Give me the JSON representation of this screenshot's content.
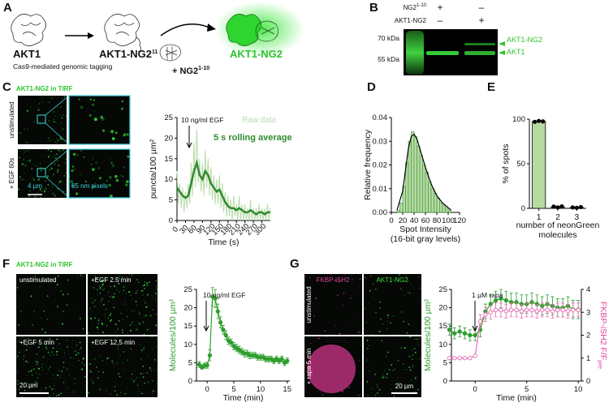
{
  "panels": {
    "A": {
      "label": "A",
      "akt1": "AKT1",
      "cas9": "Cas9-mediated genomic tagging",
      "tagged": "AKT1-NG2",
      "tagged_sup": "11",
      "ng2": "+ NG2",
      "ng2_sup": "1-10",
      "product": "AKT1-NG2"
    },
    "B": {
      "label": "B",
      "row1": "NG2",
      "row1_sup": "1-10",
      "row2": "AKT1-NG2",
      "signs": [
        [
          "+",
          "–"
        ],
        [
          "–",
          "+"
        ]
      ],
      "markers": [
        "70 kDa",
        "55 kDa"
      ],
      "bands": [
        "AKT1-NG2",
        "AKT1"
      ]
    },
    "C": {
      "label": "C",
      "title": "AKT1-NG2 in TIRF",
      "rows": [
        "unstimulated",
        "+ EGF 60s"
      ],
      "scale": "4 µm",
      "pixels": "85 nm pixels"
    },
    "D": {
      "label": "D"
    },
    "E": {
      "label": "E"
    },
    "F": {
      "label": "F",
      "title": "AKT1-NG2 in TIRF",
      "images": [
        "unstimulated",
        "+EGF 2.5 min",
        "+EGF 5 min",
        "+EGF 12.5 min"
      ],
      "scale": "20 µm"
    },
    "G": {
      "label": "G",
      "columns": [
        "FKBP-iSH2",
        "AKT1-NG2"
      ],
      "rows": [
        "unstimulated",
        "+ rapa 5 min"
      ],
      "scale": "20 µm"
    }
  },
  "chart_data": [
    {
      "type": "line",
      "ylabel": "puncta/100 µm²",
      "xlabel": "Time (s)",
      "annotation": "10 ng/ml EGF",
      "xlim": [
        0,
        330
      ],
      "xticks": [
        0,
        30,
        60,
        90,
        120,
        150,
        180,
        210,
        240,
        270,
        300
      ],
      "ylim": [
        0,
        25
      ],
      "yticks": [
        0,
        5,
        10,
        15,
        20,
        25
      ],
      "series": [
        {
          "name": "Raw data",
          "color": "#b9dcaa",
          "x": [
            0,
            5,
            10,
            15,
            20,
            25,
            30,
            35,
            40,
            45,
            50,
            55,
            60,
            65,
            70,
            75,
            80,
            85,
            90,
            95,
            100,
            105,
            110,
            115,
            120,
            125,
            130,
            135,
            140,
            145,
            150,
            155,
            160,
            165,
            170,
            175,
            180,
            185,
            190,
            195,
            200,
            205,
            210,
            215,
            220,
            225,
            230,
            235,
            240,
            245,
            250,
            255,
            260,
            265,
            270,
            275,
            280,
            285,
            290,
            295,
            300,
            305,
            310,
            315,
            320,
            325,
            330
          ],
          "values": [
            12,
            4,
            9,
            3,
            8,
            2,
            7,
            3,
            9,
            4,
            14,
            6,
            19,
            8,
            22,
            9,
            15,
            7,
            14,
            6,
            17,
            8,
            15,
            6,
            13,
            5,
            11,
            4,
            10,
            4,
            11,
            3,
            9,
            2,
            7,
            1,
            6,
            1,
            5,
            0,
            6,
            1,
            4,
            0,
            6,
            0,
            4,
            0,
            4,
            0,
            3,
            0,
            5,
            0,
            3,
            0,
            3,
            0,
            4,
            0,
            3,
            0,
            3,
            0,
            4,
            0,
            3
          ]
        },
        {
          "name": "5 s rolling average",
          "color": "#2e8b2e",
          "x": [
            0,
            10,
            20,
            30,
            40,
            50,
            60,
            70,
            80,
            90,
            100,
            110,
            120,
            130,
            140,
            150,
            160,
            170,
            180,
            190,
            200,
            210,
            220,
            230,
            240,
            250,
            260,
            270,
            280,
            290,
            300,
            310,
            320,
            330
          ],
          "values": [
            8,
            7,
            6,
            5.5,
            6,
            9,
            12,
            14,
            11,
            10,
            12,
            11,
            9,
            8,
            7,
            7.5,
            6,
            4.5,
            3.5,
            3,
            3,
            2.5,
            3,
            2.5,
            2,
            2,
            2.5,
            2,
            1.5,
            2,
            2,
            1.5,
            2,
            2
          ]
        }
      ]
    },
    {
      "type": "histogram",
      "ylabel": "Relative frequency",
      "xlabel": [
        "Spot Intensity",
        "(16-bit gray levels)"
      ],
      "color": "#b5dba2",
      "edge_color": "#3f8f3f",
      "xlim": [
        0,
        120
      ],
      "xticks": [
        0,
        20,
        40,
        60,
        80,
        100,
        120
      ],
      "ylim": [
        0,
        0.04
      ],
      "yticks": [
        {
          "value": 0,
          "label": "0.00"
        },
        {
          "value": 0.01,
          "label": "0.01"
        },
        {
          "value": 0.02,
          "label": "0.02"
        },
        {
          "value": 0.03,
          "label": "0.03"
        },
        {
          "value": 0.04,
          "label": "0.04"
        }
      ],
      "bins": [
        10,
        15,
        20,
        25,
        30,
        35,
        40,
        45,
        50,
        55,
        60,
        65,
        70,
        75,
        80,
        85,
        90,
        95,
        100,
        105
      ],
      "counts": [
        0.001,
        0.004,
        0.011,
        0.021,
        0.03,
        0.034,
        0.032,
        0.028,
        0.024,
        0.02,
        0.017,
        0.013,
        0.01,
        0.008,
        0.006,
        0.004,
        0.003,
        0.002,
        0.001
      ],
      "curve": {
        "color": "#000000",
        "x": [
          10,
          20,
          25,
          30,
          35,
          40,
          45,
          50,
          60,
          70,
          80,
          90,
          100,
          105
        ],
        "y": [
          0.001,
          0.009,
          0.018,
          0.027,
          0.032,
          0.033,
          0.031,
          0.027,
          0.019,
          0.012,
          0.007,
          0.004,
          0.002,
          0.001
        ]
      }
    },
    {
      "type": "bar",
      "ylabel": "% of spots",
      "xlabel": [
        "number of neonGreen",
        "molecules"
      ],
      "color": "#b5dba2",
      "point_color": "#000000",
      "categories": [
        "1",
        "2",
        "3"
      ],
      "values": [
        97.5,
        1.7,
        1
      ],
      "points": [
        [
          97,
          98,
          97.5
        ],
        [
          2,
          1,
          2.2
        ],
        [
          1,
          0.6,
          1.4
        ]
      ],
      "ylim": [
        0,
        100
      ],
      "yticks": [
        0,
        50,
        100
      ]
    },
    {
      "type": "errorline",
      "ylabel": "Molecules/100 µm²",
      "ylabel_color": "#2e9e2e",
      "xlabel": "Time (min)",
      "annotation": "10 ng/ml EGF",
      "xlim": [
        -2,
        15.5
      ],
      "xticks": [
        0,
        5,
        10,
        15
      ],
      "ylim": [
        0,
        25
      ],
      "yticks": [
        0,
        5,
        10,
        15,
        20,
        25
      ],
      "series": [
        {
          "color": "#2e9e2e",
          "marker": "filled",
          "x": [
            -1.5,
            -1,
            -0.5,
            0,
            0.5,
            1,
            1.5,
            2,
            2.5,
            3,
            3.5,
            4,
            4.5,
            5,
            5.5,
            6,
            6.5,
            7,
            7.5,
            8,
            8.5,
            9,
            9.5,
            10,
            10.5,
            11,
            11.5,
            12,
            12.5,
            13,
            13.5,
            14,
            14.5,
            15
          ],
          "values": [
            4.5,
            3.8,
            4.2,
            4.3,
            7,
            23,
            22.5,
            19,
            16,
            14,
            12.5,
            11,
            10.5,
            9.5,
            9,
            8.5,
            8,
            7.5,
            7.5,
            7,
            7,
            7,
            6.5,
            6.5,
            6.5,
            6,
            6,
            6,
            5.5,
            6,
            5.5,
            6,
            5,
            5.5
          ],
          "errors": [
            0.8,
            0.6,
            0.7,
            0.8,
            1.5,
            2.5,
            2.5,
            2,
            1.5,
            1.2,
            1.2,
            1,
            1,
            1,
            1,
            1,
            0.9,
            0.9,
            0.9,
            0.9,
            0.8,
            0.8,
            0.8,
            0.8,
            0.8,
            0.8,
            0.8,
            0.8,
            0.8,
            0.8,
            0.8,
            0.8,
            0.8,
            0.8
          ]
        }
      ]
    },
    {
      "type": "errorline",
      "ylabel": "Molecules/100 µm²",
      "ylabel_color": "#2e9e2e",
      "y2label": "FKBP-iSH2 F/F",
      "y2label_sub": "pre",
      "y2label_color": "#e0439a",
      "xlabel": "Time (min)",
      "annotation": "1 µM rapa",
      "xlim": [
        -2.3,
        10.3
      ],
      "xticks": [
        0,
        5,
        10
      ],
      "ylim": [
        0,
        25
      ],
      "yticks": [
        0,
        5,
        10,
        15,
        20,
        25
      ],
      "y2lim": [
        0,
        4
      ],
      "y2ticks": [
        0,
        1,
        2,
        3,
        4
      ],
      "series": [
        {
          "color": "#2e9e2e",
          "marker": "filled",
          "x": [
            -2.5,
            -2,
            -1.5,
            -1,
            -0.5,
            0,
            0.5,
            1,
            1.5,
            2,
            2.5,
            3,
            3.5,
            4,
            4.5,
            5,
            5.5,
            6,
            6.5,
            7,
            7.5,
            8,
            8.5,
            9,
            9.5,
            10
          ],
          "values": [
            14,
            13,
            13.5,
            13,
            12.5,
            12.5,
            14,
            19,
            21,
            22,
            22.5,
            22,
            21.5,
            21.5,
            21,
            21,
            21.5,
            21,
            20.5,
            21,
            20.5,
            20,
            20,
            20.5,
            19.5,
            19.5
          ],
          "errors": [
            1.5,
            1.5,
            1.5,
            1.5,
            1.5,
            1.5,
            2,
            2,
            2.5,
            2.5,
            2.5,
            2.5,
            2.5,
            2.5,
            2.5,
            2.5,
            2.5,
            2.5,
            2.5,
            2.5,
            2.5,
            2.5,
            2.5,
            2.5,
            2.5,
            2.5
          ]
        },
        {
          "color": "#e86bb4",
          "marker": "open",
          "axis": "y2",
          "x": [
            -2.5,
            -2,
            -1.5,
            -1,
            -0.5,
            0,
            0.5,
            1,
            1.5,
            2,
            2.5,
            3,
            3.5,
            4,
            4.5,
            5,
            5.5,
            6,
            6.5,
            7,
            7.5,
            8,
            8.5,
            9,
            9.5,
            10
          ],
          "values": [
            1,
            1,
            1,
            1,
            1,
            1.1,
            2.6,
            2.9,
            3,
            3.1,
            3.1,
            3.05,
            3.1,
            3.1,
            3.05,
            3.1,
            3.1,
            3.05,
            3.1,
            3.1,
            3.05,
            3.1,
            3.1,
            3.05,
            3.1,
            3.1
          ],
          "errors": [
            0.05,
            0.05,
            0.05,
            0.05,
            0.05,
            0.05,
            0.3,
            0.3,
            0.3,
            0.3,
            0.3,
            0.3,
            0.3,
            0.3,
            0.3,
            0.3,
            0.3,
            0.3,
            0.3,
            0.3,
            0.3,
            0.3,
            0.3,
            0.3,
            0.3,
            0.3
          ]
        }
      ]
    }
  ]
}
